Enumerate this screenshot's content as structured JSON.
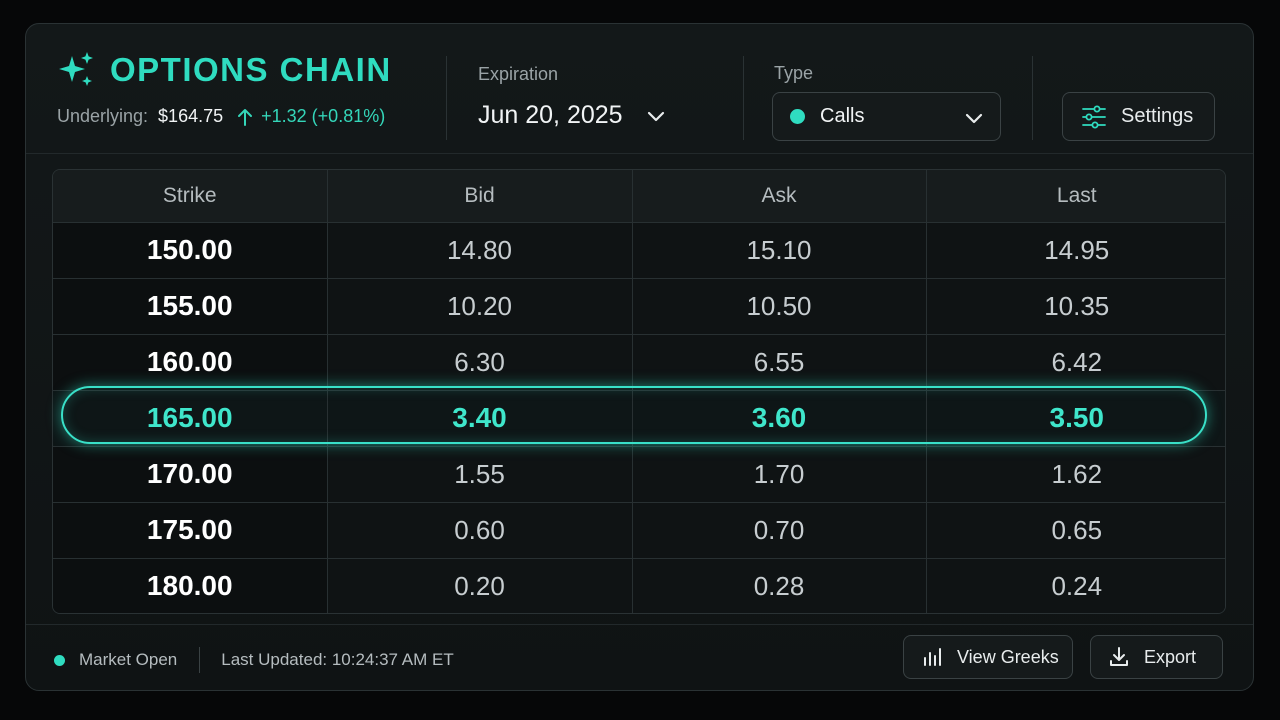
{
  "header": {
    "title": "OPTIONS CHAIN",
    "underlying_label": "Underlying:",
    "underlying_price": "$164.75",
    "underlying_change": "+1.32 (+0.81%)",
    "expiration_label": "Expiration",
    "expiration_value": "Jun 20, 2025",
    "type_label": "Type",
    "type_value": "Calls",
    "settings_label": "Settings"
  },
  "table": {
    "columns": [
      "Strike",
      "Bid",
      "Ask",
      "Last"
    ],
    "rows": [
      {
        "strike": "150.00",
        "bid": "14.80",
        "ask": "15.10",
        "last": "14.95"
      },
      {
        "strike": "155.00",
        "bid": "10.20",
        "ask": "10.50",
        "last": "10.35"
      },
      {
        "strike": "160.00",
        "bid": "6.30",
        "ask": "6.55",
        "last": "6.42"
      },
      {
        "strike": "165.00",
        "bid": "3.40",
        "ask": "3.60",
        "last": "3.50"
      },
      {
        "strike": "170.00",
        "bid": "1.55",
        "ask": "1.70",
        "last": "1.62"
      },
      {
        "strike": "175.00",
        "bid": "0.60",
        "ask": "0.70",
        "last": "0.65"
      },
      {
        "strike": "180.00",
        "bid": "0.20",
        "ask": "0.28",
        "last": "0.24"
      }
    ],
    "highlighted_row": 3
  },
  "footer": {
    "status": "Market Open",
    "last_updated": "Last Updated: 10:24:37 AM ET",
    "view_greeks_label": "View Greeks",
    "export_label": "Export"
  },
  "colors": {
    "accent": "#2fdcc0",
    "background": "#060708",
    "panel": "#131819"
  },
  "icons": {
    "brand": "sparkle-icon",
    "change": "arrow-up-icon",
    "dropdown": "chevron-down-icon",
    "settings": "sliders-icon",
    "greeks": "bar-chart-icon",
    "export": "download-icon"
  }
}
